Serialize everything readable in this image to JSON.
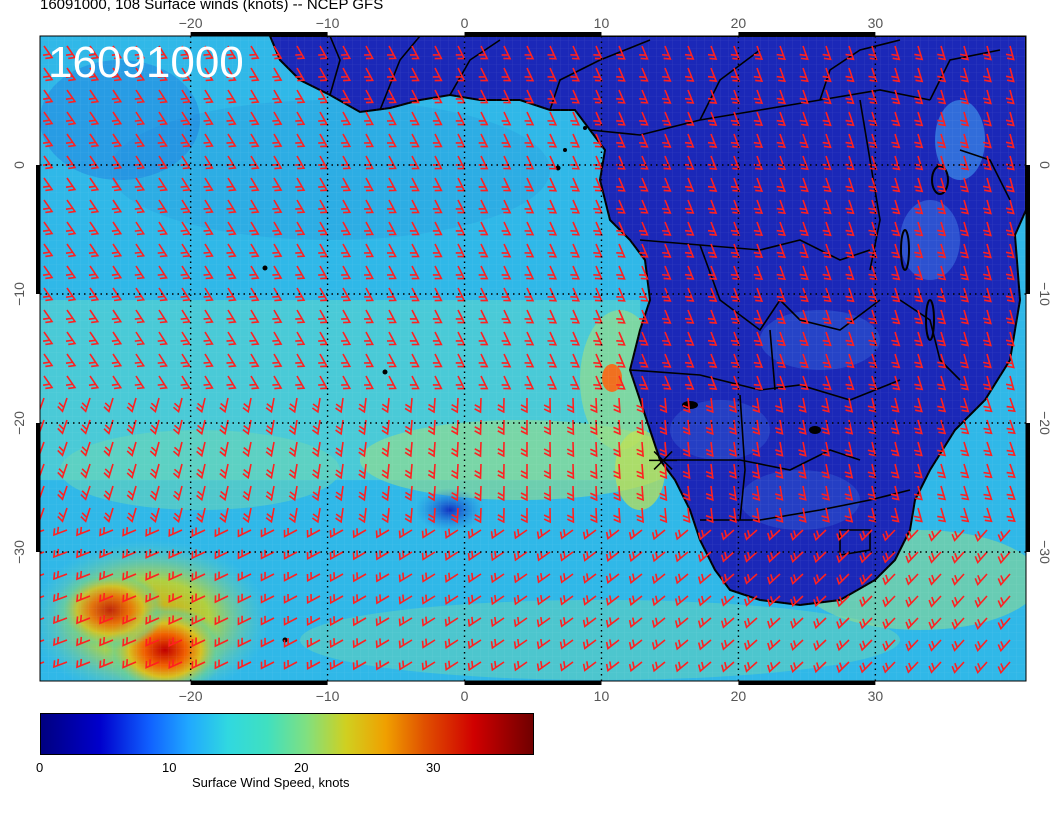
{
  "title": "16091000, 108 Surface winds (knots) -- NCEP GFS",
  "stamp": "16091000",
  "map": {
    "lon_range": [
      -31,
      41
    ],
    "lat_range": [
      -40,
      10
    ],
    "lon_ticks": [
      -20,
      -10,
      0,
      10,
      20,
      30
    ],
    "lat_ticks": [
      0,
      -10,
      -20,
      -30
    ],
    "lon_labels": [
      "−20",
      "−10",
      "0",
      "10",
      "20",
      "30"
    ],
    "lat_labels": [
      "0",
      "−10",
      "−20",
      "−30"
    ],
    "barb_color": "#ff2020",
    "coast_color": "#000000",
    "station_marker": {
      "lon": 14.5,
      "lat": -22.9
    }
  },
  "colorbar": {
    "ticks": [
      "0",
      "10",
      "20",
      "30"
    ],
    "label": "Surface Wind Speed, knots"
  }
}
